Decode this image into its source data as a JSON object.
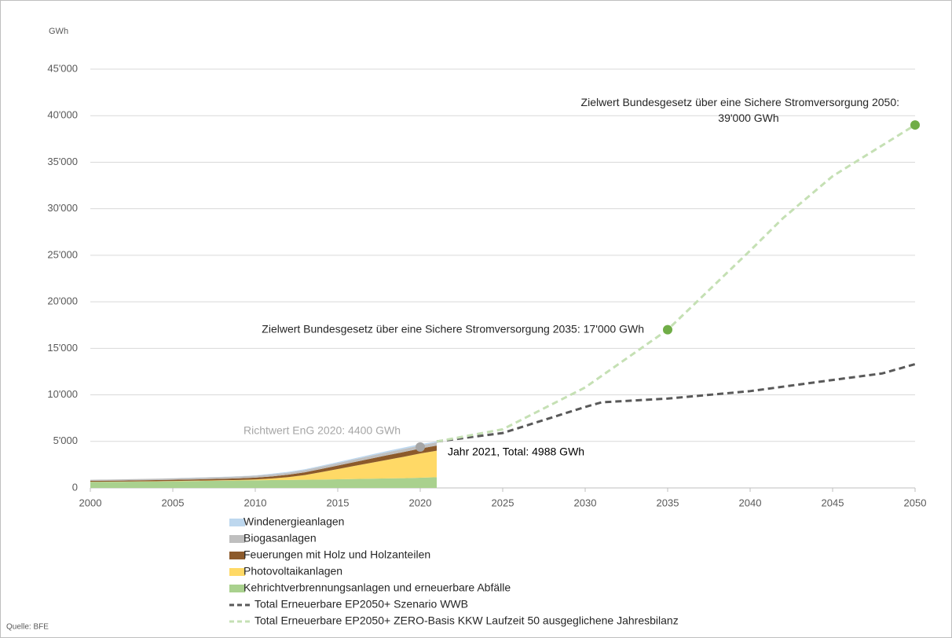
{
  "chart_data": {
    "type": "stacked-area-line",
    "y_unit": "GWh",
    "source": "Quelle: BFE",
    "xlim": [
      2000,
      2050
    ],
    "xticks": [
      2000,
      2005,
      2010,
      2015,
      2020,
      2025,
      2030,
      2035,
      2040,
      2045,
      2050
    ],
    "ylim": [
      0,
      45000
    ],
    "yticks": [
      0,
      {
        "value": 5000,
        "label": "5'000"
      },
      {
        "value": 10000,
        "label": "10'000"
      },
      {
        "value": 15000,
        "label": "15'000"
      },
      {
        "value": 20000,
        "label": "20'000"
      },
      {
        "value": 25000,
        "label": "25'000"
      },
      {
        "value": 30000,
        "label": "30'000"
      },
      {
        "value": 35000,
        "label": "35'000"
      },
      {
        "value": 40000,
        "label": "40'000"
      },
      {
        "value": 45000,
        "label": "45'000"
      }
    ],
    "grid": true,
    "series": [
      {
        "name": "Windenergieanlagen",
        "kind": "area",
        "color": "#bdd7ee",
        "x": [
          2000,
          2001,
          2002,
          2003,
          2004,
          2005,
          2006,
          2007,
          2008,
          2009,
          2010,
          2011,
          2012,
          2013,
          2014,
          2015,
          2016,
          2017,
          2018,
          2019,
          2020,
          2021
        ],
        "values": [
          0,
          0,
          0,
          0,
          5,
          10,
          15,
          20,
          20,
          25,
          35,
          70,
          80,
          90,
          100,
          110,
          120,
          130,
          140,
          150,
          140,
          88
        ]
      },
      {
        "name": "Biogasanlagen",
        "kind": "area",
        "color": "#bfbfbf",
        "x": [
          2000,
          2001,
          2002,
          2003,
          2004,
          2005,
          2006,
          2007,
          2008,
          2009,
          2010,
          2011,
          2012,
          2013,
          2014,
          2015,
          2016,
          2017,
          2018,
          2019,
          2020,
          2021
        ],
        "values": [
          120,
          125,
          130,
          140,
          150,
          160,
          170,
          180,
          190,
          200,
          210,
          220,
          230,
          240,
          250,
          260,
          280,
          300,
          320,
          330,
          340,
          350
        ]
      },
      {
        "name": "Feuerungen mit Holz und Holzanteilen",
        "kind": "area",
        "color": "#8c5a2b",
        "x": [
          2000,
          2001,
          2002,
          2003,
          2004,
          2005,
          2006,
          2007,
          2008,
          2009,
          2010,
          2011,
          2012,
          2013,
          2014,
          2015,
          2016,
          2017,
          2018,
          2019,
          2020,
          2021
        ],
        "values": [
          100,
          105,
          110,
          115,
          120,
          130,
          140,
          150,
          160,
          180,
          200,
          230,
          260,
          300,
          340,
          380,
          420,
          460,
          490,
          510,
          530,
          550
        ]
      },
      {
        "name": "Photovoltaikanlagen",
        "kind": "area",
        "color": "#ffd966",
        "x": [
          2000,
          2001,
          2002,
          2003,
          2004,
          2005,
          2006,
          2007,
          2008,
          2009,
          2010,
          2011,
          2012,
          2013,
          2014,
          2015,
          2016,
          2017,
          2018,
          2019,
          2020,
          2021
        ],
        "values": [
          10,
          12,
          15,
          18,
          20,
          25,
          30,
          35,
          40,
          55,
          90,
          170,
          300,
          500,
          800,
          1100,
          1400,
          1700,
          2000,
          2300,
          2600,
          2850
        ]
      },
      {
        "name": "Kehrichtverbrennungsanlagen und erneuerbare Abfälle",
        "kind": "area",
        "color": "#a9d18e",
        "x": [
          2000,
          2001,
          2002,
          2003,
          2004,
          2005,
          2006,
          2007,
          2008,
          2009,
          2010,
          2011,
          2012,
          2013,
          2014,
          2015,
          2016,
          2017,
          2018,
          2019,
          2020,
          2021
        ],
        "values": [
          650,
          660,
          670,
          690,
          700,
          720,
          740,
          760,
          780,
          800,
          820,
          840,
          860,
          880,
          900,
          930,
          960,
          990,
          1020,
          1050,
          1100,
          1150
        ]
      },
      {
        "name": "Total Erneuerbare EP2050+ Szenario WWB",
        "kind": "line",
        "color": "#595959",
        "x": [
          2021,
          2025,
          2030,
          2031,
          2035,
          2040,
          2045,
          2048,
          2050
        ],
        "values": [
          4988,
          5900,
          8700,
          9200,
          9600,
          10400,
          11600,
          12300,
          13300
        ]
      },
      {
        "name": "Total Erneuerbare EP2050+ ZERO-Basis KKW Laufzeit 50 ausgeglichene Jahresbilanz",
        "kind": "line",
        "color": "#c5e0b4",
        "x": [
          2021,
          2025,
          2030,
          2035,
          2040,
          2042,
          2045,
          2050
        ],
        "values": [
          4988,
          6300,
          10800,
          17000,
          25500,
          29000,
          33500,
          39000
        ]
      }
    ],
    "annotations": [
      {
        "text": [
          "Zielwert Bundesgesetz über eine Sichere Stromversorgung 2050:",
          "39'000  GWh"
        ],
        "x": 2050,
        "y": 39000,
        "color": "#70ad47",
        "text_color": "#262626"
      },
      {
        "text": [
          "Zielwert Bundesgesetz über eine Sichere Stromversorgung 2035: 17'000  GWh"
        ],
        "x": 2035,
        "y": 17000,
        "color": "#70ad47",
        "text_color": "#262626"
      },
      {
        "text": [
          "Richtwert EnG 2020: 4400 GWh"
        ],
        "x": 2020,
        "y": 4400,
        "color": "#a6a6a6",
        "text_color": "#a6a6a6"
      },
      {
        "text": [
          "Jahr 2021,  Total: 4988 GWh"
        ],
        "x": 2021,
        "y": 4988,
        "text_color": "#000000"
      }
    ]
  }
}
